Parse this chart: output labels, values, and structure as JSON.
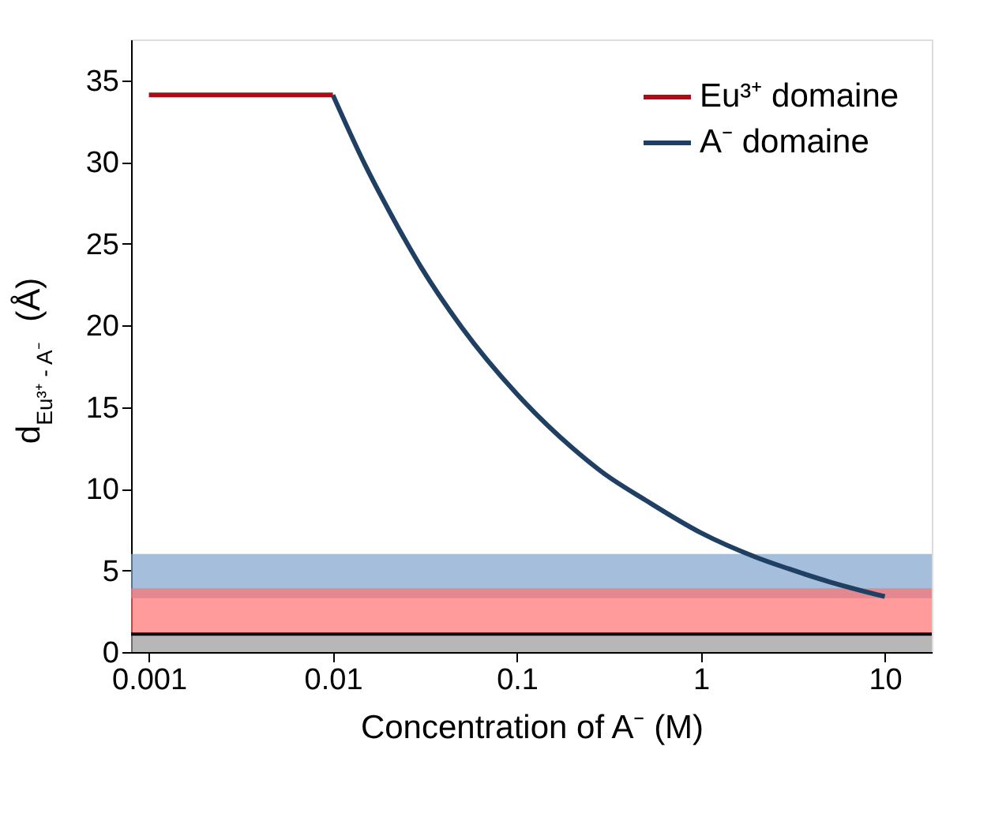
{
  "chart_data": {
    "type": "line",
    "xlabel": "Concentration of A⁻ (M)",
    "ylabel": "d$_{Eu³⁺ - A⁻}$ (Å)",
    "log": "x",
    "xlim": [
      0.0008,
      18
    ],
    "xticks": [
      0.001,
      0.01,
      0.1,
      1,
      10
    ],
    "ylim": [
      0,
      37.5
    ],
    "yticks": [
      0,
      5,
      10,
      15,
      20,
      25,
      30,
      35
    ],
    "legend": "top right",
    "grid": false,
    "marker": "none",
    "line_style": "solid",
    "series": [
      {
        "name": "Eu³⁺ domaine",
        "color": "#a50f15",
        "x": [
          0.001,
          0.01
        ],
        "values": [
          34.1,
          34.1
        ]
      },
      {
        "name": "A⁻ domaine",
        "color": "#1f3f63",
        "x": [
          0.01,
          0.015,
          0.02,
          0.03,
          0.05,
          0.1,
          0.2,
          0.3,
          0.5,
          1,
          2,
          3,
          5,
          10
        ],
        "values": [
          34.1,
          29.8,
          27.1,
          23.6,
          19.9,
          15.8,
          12.5,
          10.9,
          9.3,
          7.3,
          5.8,
          5.1,
          4.3,
          3.4
        ]
      }
    ],
    "bands": [
      {
        "axis": "y",
        "from": 0,
        "to": 1.1,
        "color": "#999999"
      },
      {
        "axis": "y",
        "from": 3.3,
        "to": 6,
        "color": "#7ea3cc"
      },
      {
        "axis": "y",
        "from": 1.1,
        "to": 3.9,
        "color": "#ff7070"
      }
    ],
    "ref_lines": [
      {
        "axis": "y",
        "value": 1.1,
        "color": "#000000",
        "line_style": "solid"
      }
    ]
  }
}
